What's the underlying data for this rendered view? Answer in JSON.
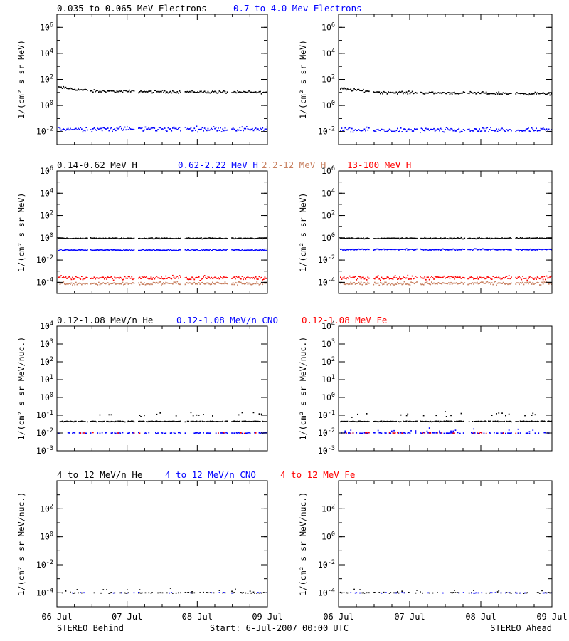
{
  "colors": {
    "black": "#000000",
    "blue": "#0000ff",
    "brown": "#c88060",
    "red": "#ff0000"
  },
  "footer": {
    "left": "STEREO Behind",
    "center": "Start:  6-Jul-2007 00:00 UTC",
    "right": "STEREO Ahead"
  },
  "x_axis": {
    "ticks": [
      {
        "day": 0,
        "label": "06-Jul"
      },
      {
        "day": 1,
        "label": "07-Jul"
      },
      {
        "day": 2,
        "label": "08-Jul"
      },
      {
        "day": 3,
        "label": "09-Jul"
      }
    ],
    "range_days": [
      0,
      3
    ]
  },
  "chart_data": [
    {
      "id": "electrons",
      "type": "scatter",
      "ylabel": "1/(cm² s sr MeV)",
      "yscale": "log",
      "ylim_log10": [
        -3,
        7
      ],
      "ytick_labels": [
        {
          "exp": -2,
          "base": "10",
          "sup": "-2"
        },
        {
          "exp": 0,
          "base": "10",
          "sup": "0"
        },
        {
          "exp": 2,
          "base": "10",
          "sup": "2"
        },
        {
          "exp": 4,
          "base": "10",
          "sup": "4"
        },
        {
          "exp": 6,
          "base": "10",
          "sup": "6"
        }
      ],
      "legend": [
        {
          "text": "0.035 to 0.065 MeV Electrons",
          "color": "#000000"
        },
        {
          "text": "0.7 to 4.0 Mev Electrons",
          "color": "#0000ff"
        }
      ],
      "data_gaps_days": [
        [
          0.43,
          0.47
        ],
        [
          1.1,
          1.14
        ],
        [
          1.77,
          1.81
        ],
        [
          2.43,
          2.47
        ]
      ],
      "series_behind": [
        {
          "name": "0.035 to 0.065 MeV Electrons",
          "color": "#000000",
          "levels": [
            [
              0,
              1.4
            ],
            [
              0.5,
              1.1
            ],
            [
              3,
              1.0
            ]
          ],
          "scatter": 0.08
        },
        {
          "name": "0.7 to 4.0 Mev Electrons",
          "color": "#0000ff",
          "levels": [
            [
              0,
              -1.8
            ],
            [
              3,
              -1.8
            ]
          ],
          "scatter": 0.15
        }
      ],
      "series_ahead": [
        {
          "name": "0.035 to 0.065 MeV Electrons",
          "color": "#000000",
          "levels": [
            [
              0,
              1.3
            ],
            [
              0.6,
              1.0
            ],
            [
              3,
              0.9
            ]
          ],
          "scatter": 0.08
        },
        {
          "name": "0.7 to 4.0 Mev Electrons",
          "color": "#0000ff",
          "levels": [
            [
              0,
              -1.9
            ],
            [
              3,
              -1.9
            ]
          ],
          "scatter": 0.15
        }
      ]
    },
    {
      "id": "protons",
      "type": "scatter",
      "ylabel": "1/(cm² s sr MeV)",
      "yscale": "log",
      "ylim_log10": [
        -5,
        6
      ],
      "ytick_labels": [
        {
          "exp": -4,
          "base": "10",
          "sup": "-4"
        },
        {
          "exp": -2,
          "base": "10",
          "sup": "-2"
        },
        {
          "exp": 0,
          "base": "10",
          "sup": "0"
        },
        {
          "exp": 2,
          "base": "10",
          "sup": "2"
        },
        {
          "exp": 4,
          "base": "10",
          "sup": "4"
        },
        {
          "exp": 6,
          "base": "10",
          "sup": "6"
        }
      ],
      "legend": [
        {
          "text": "0.14-0.62 MeV H",
          "color": "#000000"
        },
        {
          "text": "0.62-2.22 MeV H",
          "color": "#0000ff"
        },
        {
          "text": "2.2-12 MeV H",
          "color": "#c88060"
        },
        {
          "text": "13-100 MeV H",
          "color": "#ff0000"
        }
      ],
      "data_gaps_days": [
        [
          0.43,
          0.47
        ],
        [
          1.1,
          1.14
        ],
        [
          1.77,
          1.81
        ],
        [
          2.43,
          2.47
        ]
      ],
      "series_behind": [
        {
          "name": "0.14-0.62 MeV H",
          "color": "#000000",
          "levels": [
            [
              0,
              -0.05
            ],
            [
              3,
              -0.05
            ]
          ],
          "scatter": 0.04
        },
        {
          "name": "0.62-2.22 MeV H",
          "color": "#0000ff",
          "levels": [
            [
              0,
              -1.1
            ],
            [
              3,
              -1.1
            ]
          ],
          "scatter": 0.05
        },
        {
          "name": "2.2-12 MeV H",
          "color": "#c88060",
          "levels": [
            [
              0,
              -4.1
            ],
            [
              3,
              -4.1
            ]
          ],
          "scatter": 0.12
        },
        {
          "name": "13-100 MeV H",
          "color": "#ff0000",
          "levels": [
            [
              0,
              -3.6
            ],
            [
              3,
              -3.6
            ]
          ],
          "scatter": 0.15
        }
      ],
      "series_ahead": [
        {
          "name": "0.14-0.62 MeV H",
          "color": "#000000",
          "levels": [
            [
              0,
              -0.05
            ],
            [
              3,
              -0.05
            ]
          ],
          "scatter": 0.04
        },
        {
          "name": "0.62-2.22 MeV H",
          "color": "#0000ff",
          "levels": [
            [
              0,
              -1.05
            ],
            [
              3,
              -1.05
            ]
          ],
          "scatter": 0.05
        },
        {
          "name": "2.2-12 MeV H",
          "color": "#c88060",
          "levels": [
            [
              0,
              -4.1
            ],
            [
              3,
              -4.1
            ]
          ],
          "scatter": 0.12
        },
        {
          "name": "13-100 MeV H",
          "color": "#ff0000",
          "levels": [
            [
              0,
              -3.6
            ],
            [
              3,
              -3.6
            ]
          ],
          "scatter": 0.15
        }
      ]
    },
    {
      "id": "heavy-ions-low",
      "type": "scatter",
      "ylabel": "1/(cm² s sr MeV/nuc.)",
      "yscale": "log",
      "ylim_log10": [
        -3,
        4
      ],
      "ytick_labels": [
        {
          "exp": -3,
          "base": "10",
          "sup": "-3"
        },
        {
          "exp": -2,
          "base": "10",
          "sup": "-2"
        },
        {
          "exp": -1,
          "base": "10",
          "sup": "-1"
        },
        {
          "exp": 0,
          "base": "10",
          "sup": "0"
        },
        {
          "exp": 1,
          "base": "10",
          "sup": "1"
        },
        {
          "exp": 2,
          "base": "10",
          "sup": "2"
        },
        {
          "exp": 3,
          "base": "10",
          "sup": "3"
        },
        {
          "exp": 4,
          "base": "10",
          "sup": "4"
        }
      ],
      "legend": [
        {
          "text": "0.12-1.08 MeV/n He",
          "color": "#000000"
        },
        {
          "text": "0.12-1.08 MeV/n CNO",
          "color": "#0000ff"
        },
        {
          "text": "0.12-1.08 MeV Fe",
          "color": "#ff0000"
        }
      ],
      "data_gaps_days": [
        [
          0.43,
          0.47
        ],
        [
          1.1,
          1.14
        ],
        [
          1.77,
          1.81
        ],
        [
          2.43,
          2.47
        ]
      ],
      "series_behind": [
        {
          "name": "0.12-1.08 MeV/n He",
          "color": "#000000",
          "levels": [
            [
              0,
              -1.35
            ],
            [
              3,
              -1.35
            ]
          ],
          "scatter": 0.02,
          "density": 0.9
        },
        {
          "name": "0.12-1.08 MeV/n He",
          "color": "#000000",
          "levels": [
            [
              0,
              -0.95
            ],
            [
              3,
              -0.95
            ]
          ],
          "scatter": 0.1,
          "density": 0.08
        },
        {
          "name": "0.12-1.08 MeV/n CNO",
          "color": "#0000ff",
          "levels": [
            [
              0,
              -2.0
            ],
            [
              3,
              -2.0
            ]
          ],
          "scatter": 0.02,
          "density": 0.5
        },
        {
          "name": "0.12-1.08 MeV Fe",
          "color": "#ff0000",
          "levels": [
            [
              0,
              -2.0
            ],
            [
              3,
              -2.0
            ]
          ],
          "scatter": 0.02,
          "density": 0.12
        }
      ],
      "series_ahead": [
        {
          "name": "0.12-1.08 MeV/n He",
          "color": "#000000",
          "levels": [
            [
              0,
              -1.35
            ],
            [
              3,
              -1.35
            ]
          ],
          "scatter": 0.02,
          "density": 0.9
        },
        {
          "name": "0.12-1.08 MeV/n He",
          "color": "#000000",
          "levels": [
            [
              0,
              -0.95
            ],
            [
              3,
              -0.95
            ]
          ],
          "scatter": 0.12,
          "density": 0.12
        },
        {
          "name": "0.12-1.08 MeV/n CNO",
          "color": "#0000ff",
          "levels": [
            [
              0,
              -2.0
            ],
            [
              3,
              -2.0
            ]
          ],
          "scatter": 0.02,
          "density": 0.5
        },
        {
          "name": "0.12-1.08 MeV/n CNO",
          "color": "#0000ff",
          "levels": [
            [
              0,
              -1.85
            ],
            [
              3,
              -1.85
            ]
          ],
          "scatter": 0.1,
          "density": 0.1
        },
        {
          "name": "0.12-1.08 MeV Fe",
          "color": "#ff0000",
          "levels": [
            [
              0,
              -2.0
            ],
            [
              3,
              -2.0
            ]
          ],
          "scatter": 0.02,
          "density": 0.12
        }
      ]
    },
    {
      "id": "heavy-ions-high",
      "type": "scatter",
      "ylabel": "1/(cm² s sr MeV/nuc.)",
      "yscale": "log",
      "ylim_log10": [
        -5,
        4
      ],
      "ytick_labels": [
        {
          "exp": -4,
          "base": "10",
          "sup": "-4"
        },
        {
          "exp": -2,
          "base": "10",
          "sup": "-2"
        },
        {
          "exp": 0,
          "base": "10",
          "sup": "0"
        },
        {
          "exp": 2,
          "base": "10",
          "sup": "2"
        }
      ],
      "legend": [
        {
          "text": "4 to 12 MeV/n He",
          "color": "#000000"
        },
        {
          "text": "4 to 12 MeV/n CNO",
          "color": "#0000ff"
        },
        {
          "text": "4 to 12 MeV Fe",
          "color": "#ff0000"
        }
      ],
      "data_gaps_days": [
        [
          0.43,
          0.47
        ],
        [
          1.1,
          1.14
        ],
        [
          1.77,
          1.81
        ],
        [
          2.43,
          2.47
        ]
      ],
      "series_behind": [
        {
          "name": "4 to 12 MeV/n He",
          "color": "#000000",
          "levels": [
            [
              0,
              -4.0
            ],
            [
              3,
              -4.0
            ]
          ],
          "scatter": 0.03,
          "density": 0.35
        },
        {
          "name": "4 to 12 MeV/n He",
          "color": "#000000",
          "levels": [
            [
              0,
              -3.8
            ],
            [
              3,
              -3.8
            ]
          ],
          "scatter": 0.08,
          "density": 0.04
        },
        {
          "name": "4 to 12 MeV/n CNO",
          "color": "#0000ff",
          "levels": [
            [
              0,
              -4.0
            ],
            [
              3,
              -4.0
            ]
          ],
          "scatter": 0.02,
          "density": 0.12
        }
      ],
      "series_ahead": [
        {
          "name": "4 to 12 MeV/n He",
          "color": "#000000",
          "levels": [
            [
              0,
              -4.0
            ],
            [
              3,
              -4.0
            ]
          ],
          "scatter": 0.03,
          "density": 0.3
        },
        {
          "name": "4 to 12 MeV/n He",
          "color": "#000000",
          "levels": [
            [
              0,
              -3.85
            ],
            [
              3,
              -3.85
            ]
          ],
          "scatter": 0.08,
          "density": 0.04
        },
        {
          "name": "4 to 12 MeV/n CNO",
          "color": "#0000ff",
          "levels": [
            [
              0,
              -4.0
            ],
            [
              3,
              -4.0
            ]
          ],
          "scatter": 0.02,
          "density": 0.25
        }
      ]
    }
  ]
}
